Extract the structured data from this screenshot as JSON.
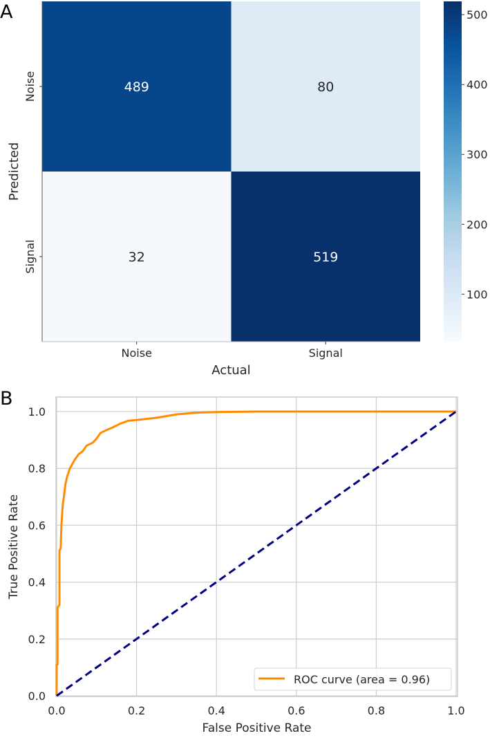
{
  "figure": {
    "panel_labels": [
      "A",
      "B"
    ]
  },
  "chart_data": [
    {
      "type": "heatmap",
      "title": "",
      "panel": "A",
      "xlabel": "Actual",
      "ylabel": "Predicted",
      "x_categories": [
        "Noise",
        "Signal"
      ],
      "y_categories": [
        "Noise",
        "Signal"
      ],
      "values": [
        [
          489,
          80
        ],
        [
          32,
          519
        ]
      ],
      "colormap": "Blues",
      "vmin": 32,
      "vmax": 519,
      "colorbar": {
        "ticks": [
          100,
          200,
          300,
          400,
          500
        ],
        "tick_labels": [
          "100",
          "200",
          "300",
          "400",
          "500"
        ]
      },
      "cell_colors": [
        [
          "#08468b",
          "#deebf7"
        ],
        [
          "#f5f9fe",
          "#08306b"
        ]
      ],
      "annotation_colors": [
        [
          "#ffffff",
          "#262626"
        ],
        [
          "#262626",
          "#ffffff"
        ]
      ]
    },
    {
      "type": "line",
      "panel": "B",
      "title": "",
      "xlabel": "False Positive Rate",
      "ylabel": "True Positive Rate",
      "xlim": [
        0.0,
        1.0
      ],
      "ylim": [
        0.0,
        1.0
      ],
      "xticks": [
        0.0,
        0.2,
        0.4,
        0.6,
        0.8,
        1.0
      ],
      "xtick_labels": [
        "0.0",
        "0.2",
        "0.4",
        "0.6",
        "0.8",
        "1.0"
      ],
      "yticks": [
        0.0,
        0.2,
        0.4,
        0.6,
        0.8,
        1.0
      ],
      "ytick_labels": [
        "0.0",
        "0.2",
        "0.4",
        "0.6",
        "0.8",
        "1.0"
      ],
      "grid": true,
      "legend": {
        "position": "lower right",
        "entries": [
          "ROC curve (area = 0.96)"
        ]
      },
      "series": [
        {
          "name": "ROC curve (area = 0.96)",
          "color": "#ff8c00",
          "style": "solid",
          "auc": 0.96,
          "x": [
            0.0,
            0.0,
            0.002,
            0.002,
            0.007,
            0.007,
            0.01,
            0.012,
            0.015,
            0.018,
            0.022,
            0.026,
            0.033,
            0.045,
            0.055,
            0.065,
            0.075,
            0.09,
            0.1,
            0.11,
            0.125,
            0.14,
            0.16,
            0.18,
            0.2,
            0.25,
            0.3,
            0.35,
            0.4,
            0.45,
            0.5,
            0.6,
            0.7,
            0.8,
            0.9,
            1.0
          ],
          "y": [
            0.0,
            0.11,
            0.11,
            0.31,
            0.32,
            0.51,
            0.52,
            0.6,
            0.67,
            0.7,
            0.745,
            0.77,
            0.8,
            0.83,
            0.85,
            0.86,
            0.88,
            0.89,
            0.905,
            0.925,
            0.935,
            0.944,
            0.958,
            0.968,
            0.97,
            0.978,
            0.99,
            0.996,
            0.998,
            0.999,
            1.0,
            1.0,
            1.0,
            1.0,
            1.0,
            1.0
          ]
        },
        {
          "name": "chance",
          "color": "#000080",
          "style": "dashed",
          "x": [
            0.0,
            1.0
          ],
          "y": [
            0.0,
            1.0
          ]
        }
      ]
    }
  ]
}
